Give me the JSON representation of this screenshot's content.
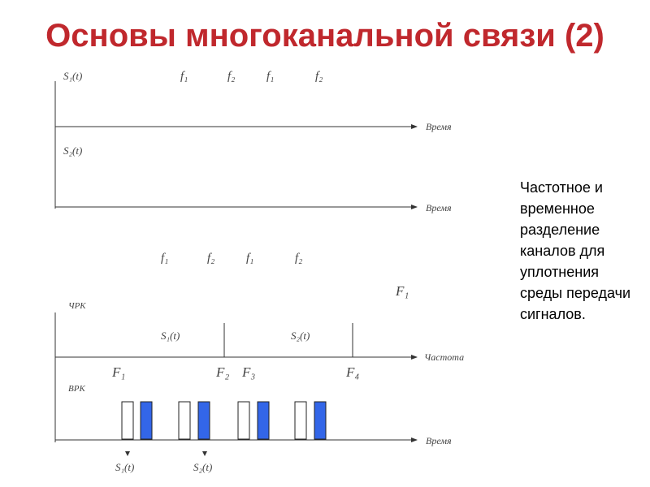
{
  "title": "Основы многоканальной связи (2)",
  "side_text": "Частотное и временное разделение каналов для уплотнения среды передачи сигналов.",
  "labels": {
    "s1": "S₁(t)",
    "s2": "S₂(t)",
    "f1": "f₁",
    "f2": "f₂",
    "time": "Время",
    "freq": "Частота",
    "fdm": "ЧРК",
    "tdm": "ВРК",
    "F1": "F₁",
    "F2": "F₂",
    "F3": "F₃",
    "F4": "F₄"
  },
  "colors": {
    "title": "#c0282d",
    "pulse": "#3366e8"
  }
}
